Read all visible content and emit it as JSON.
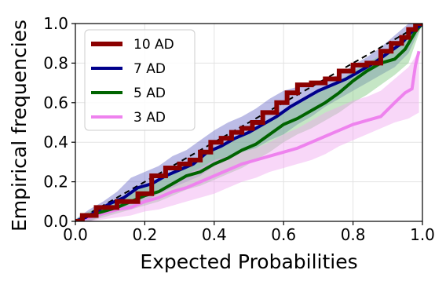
{
  "chart_data": {
    "type": "line",
    "xlabel": "Expected Probabilities",
    "ylabel": "Empirical frequencies",
    "xlim": [
      0.0,
      1.0
    ],
    "ylim": [
      0.0,
      1.0
    ],
    "xticks": [
      0.0,
      0.2,
      0.4,
      0.6,
      0.8,
      1.0
    ],
    "yticks": [
      0.0,
      0.2,
      0.4,
      0.6,
      0.8,
      1.0
    ],
    "xtick_labels": [
      "0.0",
      "0.2",
      "0.4",
      "0.6",
      "0.8",
      "1.0"
    ],
    "ytick_labels": [
      "0.0",
      "0.2",
      "0.4",
      "0.6",
      "0.8",
      "1.0"
    ],
    "grid": true,
    "legend_position": "top-left",
    "reference_line": {
      "style": "dashed",
      "color": "#000000",
      "x": [
        0.0,
        1.0
      ],
      "y": [
        0.0,
        1.0
      ]
    },
    "series": [
      {
        "name": "10 AD",
        "color": "#8b0000",
        "style": "step",
        "x": [
          0.0,
          0.02,
          0.06,
          0.12,
          0.18,
          0.22,
          0.26,
          0.3,
          0.33,
          0.36,
          0.39,
          0.42,
          0.45,
          0.48,
          0.51,
          0.54,
          0.58,
          0.61,
          0.64,
          0.68,
          0.72,
          0.76,
          0.8,
          0.84,
          0.88,
          0.91,
          0.94,
          0.96,
          0.98,
          1.0
        ],
        "y": [
          0.0,
          0.03,
          0.07,
          0.1,
          0.14,
          0.23,
          0.27,
          0.29,
          0.31,
          0.35,
          0.4,
          0.42,
          0.45,
          0.47,
          0.5,
          0.55,
          0.6,
          0.65,
          0.69,
          0.7,
          0.72,
          0.76,
          0.79,
          0.8,
          0.86,
          0.9,
          0.93,
          0.97,
          1.0,
          1.0
        ]
      },
      {
        "name": "7 AD",
        "color": "#00008b",
        "style": "line",
        "x": [
          0.0,
          0.03,
          0.06,
          0.1,
          0.14,
          0.18,
          0.22,
          0.26,
          0.3,
          0.34,
          0.38,
          0.42,
          0.46,
          0.5,
          0.54,
          0.58,
          0.62,
          0.66,
          0.7,
          0.74,
          0.78,
          0.82,
          0.86,
          0.9,
          0.94,
          0.97,
          1.0
        ],
        "y": [
          0.0,
          0.02,
          0.05,
          0.09,
          0.12,
          0.17,
          0.19,
          0.23,
          0.26,
          0.29,
          0.35,
          0.38,
          0.42,
          0.45,
          0.49,
          0.53,
          0.58,
          0.62,
          0.66,
          0.69,
          0.72,
          0.76,
          0.8,
          0.85,
          0.9,
          0.96,
          1.0
        ]
      },
      {
        "name": "5 AD",
        "color": "#006400",
        "style": "line",
        "x": [
          0.0,
          0.04,
          0.08,
          0.12,
          0.16,
          0.2,
          0.24,
          0.28,
          0.32,
          0.36,
          0.4,
          0.44,
          0.48,
          0.52,
          0.56,
          0.6,
          0.64,
          0.68,
          0.72,
          0.76,
          0.8,
          0.84,
          0.88,
          0.92,
          0.95,
          0.98,
          1.0
        ],
        "y": [
          0.0,
          0.03,
          0.05,
          0.07,
          0.1,
          0.13,
          0.15,
          0.19,
          0.23,
          0.25,
          0.29,
          0.32,
          0.36,
          0.39,
          0.44,
          0.49,
          0.52,
          0.56,
          0.6,
          0.65,
          0.71,
          0.76,
          0.8,
          0.82,
          0.87,
          0.96,
          1.0
        ]
      },
      {
        "name": "3 AD",
        "color": "#ee82ee",
        "style": "line",
        "x": [
          0.0,
          0.04,
          0.08,
          0.12,
          0.16,
          0.2,
          0.24,
          0.28,
          0.32,
          0.36,
          0.4,
          0.44,
          0.48,
          0.52,
          0.56,
          0.6,
          0.64,
          0.68,
          0.72,
          0.76,
          0.8,
          0.84,
          0.88,
          0.92,
          0.95,
          0.97,
          0.98,
          0.99
        ],
        "y": [
          0.0,
          0.02,
          0.04,
          0.06,
          0.07,
          0.1,
          0.12,
          0.15,
          0.17,
          0.2,
          0.23,
          0.26,
          0.29,
          0.31,
          0.33,
          0.35,
          0.37,
          0.4,
          0.43,
          0.46,
          0.49,
          0.51,
          0.53,
          0.6,
          0.65,
          0.67,
          0.79,
          0.86
        ]
      }
    ],
    "bands": [
      {
        "series": "7 AD",
        "color": "#6a6ac8",
        "opacity": 0.45,
        "x": [
          0.0,
          0.04,
          0.08,
          0.12,
          0.16,
          0.2,
          0.24,
          0.28,
          0.32,
          0.36,
          0.4,
          0.44,
          0.48,
          0.52,
          0.56,
          0.6,
          0.64,
          0.68,
          0.72,
          0.76,
          0.8,
          0.84,
          0.88,
          0.92,
          0.96,
          1.0
        ],
        "upper": [
          0.01,
          0.06,
          0.1,
          0.15,
          0.22,
          0.25,
          0.28,
          0.33,
          0.36,
          0.41,
          0.46,
          0.5,
          0.53,
          0.57,
          0.62,
          0.66,
          0.68,
          0.7,
          0.72,
          0.74,
          0.79,
          0.83,
          0.88,
          0.94,
          1.0,
          1.0
        ],
        "lower": [
          0.0,
          0.0,
          0.03,
          0.05,
          0.08,
          0.1,
          0.14,
          0.17,
          0.2,
          0.23,
          0.28,
          0.31,
          0.35,
          0.37,
          0.41,
          0.44,
          0.49,
          0.53,
          0.58,
          0.62,
          0.66,
          0.7,
          0.74,
          0.78,
          0.85,
          1.0
        ]
      },
      {
        "series": "5 AD",
        "color": "#7fc77f",
        "opacity": 0.45,
        "x": [
          0.0,
          0.04,
          0.08,
          0.12,
          0.16,
          0.2,
          0.24,
          0.28,
          0.32,
          0.36,
          0.4,
          0.44,
          0.48,
          0.52,
          0.56,
          0.6,
          0.64,
          0.68,
          0.72,
          0.76,
          0.8,
          0.84,
          0.88,
          0.92,
          0.96,
          1.0
        ],
        "upper": [
          0.01,
          0.05,
          0.08,
          0.11,
          0.15,
          0.18,
          0.21,
          0.25,
          0.29,
          0.32,
          0.36,
          0.41,
          0.44,
          0.48,
          0.52,
          0.55,
          0.59,
          0.63,
          0.67,
          0.71,
          0.76,
          0.8,
          0.84,
          0.88,
          0.94,
          1.0
        ],
        "lower": [
          0.0,
          0.0,
          0.02,
          0.04,
          0.06,
          0.08,
          0.1,
          0.13,
          0.16,
          0.18,
          0.21,
          0.24,
          0.27,
          0.31,
          0.35,
          0.4,
          0.44,
          0.47,
          0.51,
          0.55,
          0.6,
          0.64,
          0.69,
          0.74,
          0.8,
          1.0
        ]
      },
      {
        "series": "3 AD",
        "color": "#f0a6f0",
        "opacity": 0.45,
        "x": [
          0.0,
          0.04,
          0.08,
          0.12,
          0.16,
          0.2,
          0.24,
          0.28,
          0.32,
          0.36,
          0.4,
          0.44,
          0.48,
          0.52,
          0.56,
          0.6,
          0.64,
          0.68,
          0.72,
          0.76,
          0.8,
          0.84,
          0.88,
          0.92,
          0.96,
          0.99
        ],
        "upper": [
          0.01,
          0.04,
          0.06,
          0.08,
          0.1,
          0.13,
          0.16,
          0.2,
          0.24,
          0.27,
          0.31,
          0.33,
          0.35,
          0.37,
          0.4,
          0.44,
          0.47,
          0.51,
          0.55,
          0.58,
          0.61,
          0.63,
          0.66,
          0.72,
          0.78,
          0.86
        ],
        "lower": [
          0.0,
          0.0,
          0.01,
          0.02,
          0.03,
          0.05,
          0.06,
          0.08,
          0.1,
          0.12,
          0.14,
          0.17,
          0.2,
          0.22,
          0.25,
          0.27,
          0.29,
          0.31,
          0.34,
          0.38,
          0.41,
          0.44,
          0.47,
          0.5,
          0.52,
          0.55
        ]
      }
    ]
  }
}
